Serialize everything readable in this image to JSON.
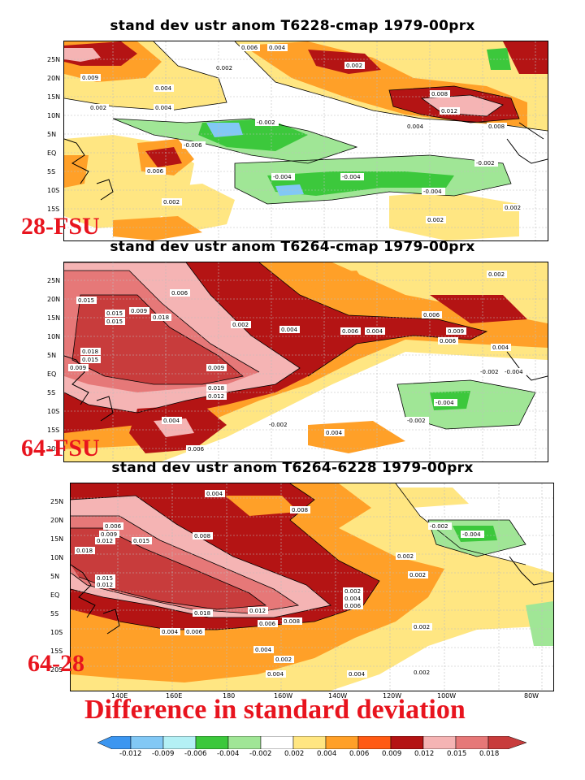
{
  "panels": [
    {
      "title": "stand dev ustr anom T6228-cmap 1979-00prx",
      "label": "28-FSU"
    },
    {
      "title": "stand dev ustr anom T6264-cmap 1979-00prx",
      "label": "64-FSU"
    },
    {
      "title": "stand dev ustr anom T6264-6228 1979-00prx",
      "label": "64-28"
    }
  ],
  "bottom_title": "Difference in standard deviation",
  "chart_data": {
    "type": "heatmap",
    "lat_ticks": [
      "25N",
      "20N",
      "15N",
      "10N",
      "5N",
      "EQ",
      "5S",
      "10S",
      "15S",
      "20S"
    ],
    "lon_ticks": [
      "140E",
      "160E",
      "180",
      "160W",
      "140W",
      "120W",
      "100W",
      "80W"
    ],
    "colorbar": {
      "ticks": [
        "-0.012",
        "-0.009",
        "-0.006",
        "-0.004",
        "-0.002",
        "0.002",
        "0.004",
        "0.006",
        "0.009",
        "0.012",
        "0.015",
        "0.018"
      ],
      "colors": [
        "#3c96f0",
        "#82c8f5",
        "#b4f0f5",
        "#3cc83c",
        "#a0e696",
        "#ffffff",
        "#ffe682",
        "#ffa028",
        "#ff5a14",
        "#b41414",
        "#f5b4b4",
        "#e67878",
        "#c83c3c"
      ]
    },
    "contour_labels": {
      "panel1": [
        "0.002",
        "0.004",
        "0.006",
        "0.008",
        "0.009",
        "0.012",
        "-0.002",
        "-0.004",
        "-0.006"
      ],
      "panel2": [
        "0.015",
        "0.018",
        "0.012",
        "0.009",
        "0.006",
        "0.004",
        "0.002",
        "-0.002",
        "-0.004"
      ],
      "panel3": [
        "0.018",
        "0.015",
        "0.012",
        "0.009",
        "0.006",
        "0.004",
        "0.002",
        "-0.002",
        "-0.004"
      ]
    }
  }
}
